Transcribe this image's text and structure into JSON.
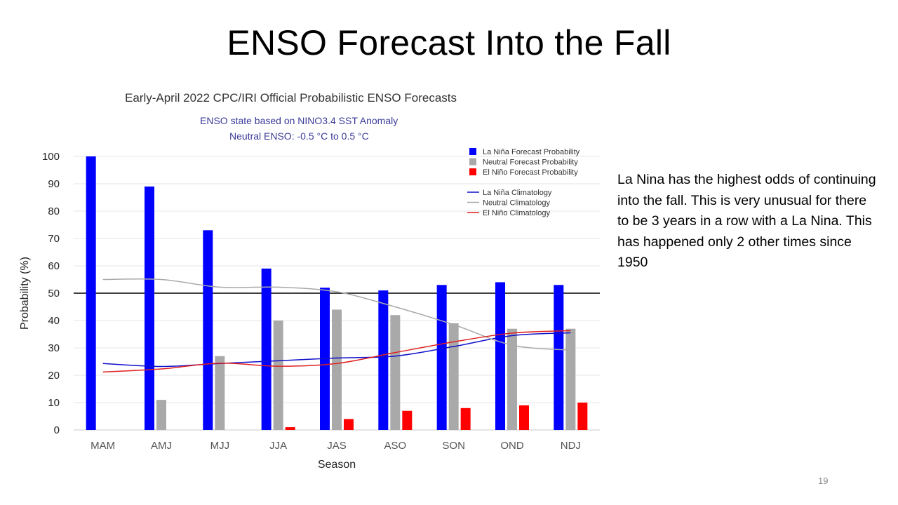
{
  "slide": {
    "title": "ENSO Forecast Into the Fall",
    "side_text": "La Nina has the highest odds of continuing into the fall.  This is very unusual for there to be 3 years in a row with a La Nina.  This has happened only 2 other times since 1950",
    "page_number": "19"
  },
  "chart_data": {
    "type": "bar",
    "title": "Early-April 2022 CPC/IRI Official Probabilistic ENSO Forecasts",
    "subtitle_lines": [
      "ENSO state based on NINO3.4 SST Anomaly",
      "Neutral ENSO: -0.5 °C to 0.5 °C"
    ],
    "xlabel": "Season",
    "ylabel": "Probability (%)",
    "ylim": [
      0,
      100
    ],
    "yticks": [
      0,
      10,
      20,
      30,
      40,
      50,
      60,
      70,
      80,
      90,
      100
    ],
    "reference_line": 50,
    "grid": true,
    "legend_position": "top-right",
    "categories": [
      "MAM",
      "AMJ",
      "MJJ",
      "JJA",
      "JAS",
      "ASO",
      "SON",
      "OND",
      "NDJ"
    ],
    "series": [
      {
        "name": "La Niña Forecast Probability",
        "kind": "bar",
        "color": "#0000ff",
        "values": [
          100,
          89,
          73,
          59,
          52,
          51,
          53,
          54,
          53
        ]
      },
      {
        "name": "Neutral Forecast Probability",
        "kind": "bar",
        "color": "#a9a9a9",
        "values": [
          0,
          11,
          27,
          40,
          44,
          42,
          39,
          37,
          37
        ]
      },
      {
        "name": "El Niño Forecast Probability",
        "kind": "bar",
        "color": "#ff0000",
        "values": [
          0,
          0,
          0,
          1,
          4,
          7,
          8,
          9,
          10
        ]
      },
      {
        "name": "La Niña Climatology",
        "kind": "line",
        "color": "#1010cc",
        "values": [
          24.3,
          23.2,
          24.3,
          25.3,
          26.3,
          27,
          30.5,
          34.5,
          35.5
        ]
      },
      {
        "name": "Neutral Climatology",
        "kind": "line",
        "color": "#a9a9a9",
        "values": [
          55,
          55,
          52.2,
          52.2,
          50.5,
          45,
          38.5,
          31,
          29.2
        ]
      },
      {
        "name": "El Niño Climatology",
        "kind": "line",
        "color": "#e02020",
        "values": [
          21.2,
          22.3,
          24.4,
          23.3,
          24.3,
          28.3,
          32.2,
          35.4,
          36.3
        ]
      }
    ]
  }
}
